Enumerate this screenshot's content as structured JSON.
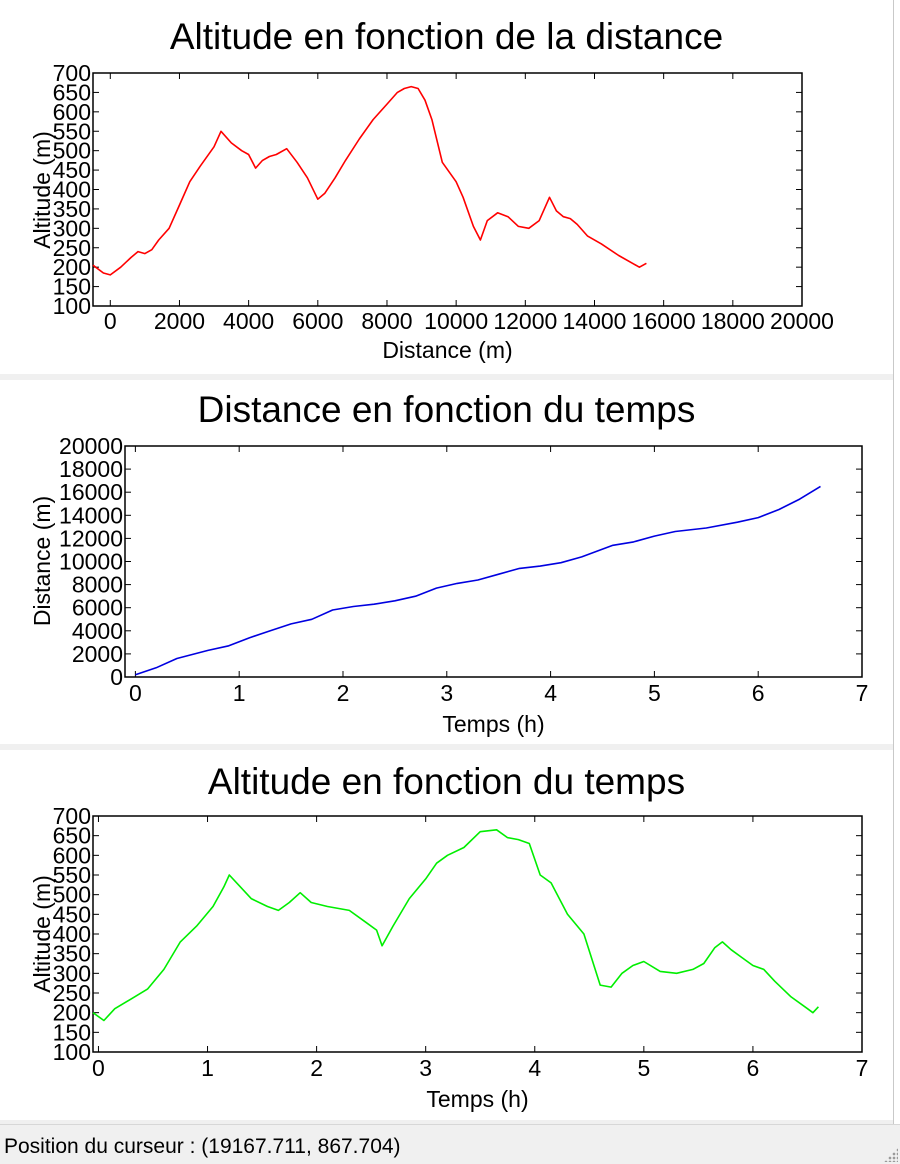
{
  "status": {
    "label": "Position du curseur : ",
    "value": "(19167.711, 867.704)"
  },
  "chart_data": [
    {
      "type": "line",
      "title": "Altitude en fonction de la distance",
      "xlabel": "Distance (m)",
      "ylabel": "Altitude (m)",
      "xlim": [
        -500,
        20000
      ],
      "ylim": [
        100,
        700
      ],
      "xticks": [
        0,
        2000,
        4000,
        6000,
        8000,
        10000,
        12000,
        14000,
        16000,
        18000,
        20000
      ],
      "xtick_labels": [
        "0",
        "2000",
        "4000",
        "6000",
        "8000",
        "10000",
        "12000",
        "14000",
        "16000",
        "18000",
        "20000"
      ],
      "yticks": [
        100,
        150,
        200,
        250,
        300,
        350,
        400,
        450,
        500,
        550,
        600,
        650,
        700
      ],
      "ytick_labels": [
        "100",
        "150",
        "200",
        "250",
        "300",
        "350",
        "400",
        "450",
        "500",
        "550",
        "600",
        "650",
        "700"
      ],
      "grid": false,
      "color": "#ff0000",
      "series": [
        {
          "x": [
            -500,
            -200,
            0,
            300,
            600,
            800,
            1000,
            1200,
            1400,
            1700,
            2000,
            2300,
            2600,
            3000,
            3200,
            3500,
            3800,
            4000,
            4200,
            4400,
            4600,
            4800,
            5100,
            5400,
            5700,
            6000,
            6200,
            6500,
            6800,
            7200,
            7600,
            8000,
            8300,
            8500,
            8700,
            8900,
            9100,
            9300,
            9600,
            10000,
            10200,
            10500,
            10700,
            10900,
            11200,
            11500,
            11800,
            12100,
            12400,
            12700,
            12900,
            13100,
            13300,
            13500,
            13800,
            14200,
            14700,
            15100,
            15300,
            15500
          ],
          "y": [
            205,
            185,
            180,
            200,
            225,
            240,
            235,
            245,
            270,
            300,
            360,
            420,
            460,
            510,
            550,
            520,
            500,
            490,
            455,
            475,
            485,
            490,
            505,
            470,
            430,
            375,
            390,
            430,
            475,
            530,
            580,
            620,
            650,
            660,
            665,
            660,
            630,
            580,
            470,
            420,
            380,
            305,
            270,
            320,
            340,
            330,
            305,
            300,
            320,
            380,
            345,
            330,
            325,
            310,
            280,
            260,
            230,
            210,
            200,
            210
          ]
        }
      ]
    },
    {
      "type": "line",
      "title": "Distance en fonction du temps",
      "xlabel": "Temps (h)",
      "ylabel": "Distance (m)",
      "xlim": [
        -0.1,
        7
      ],
      "ylim": [
        0,
        20000
      ],
      "xticks": [
        0,
        1,
        2,
        3,
        4,
        5,
        6,
        7
      ],
      "xtick_labels": [
        "0",
        "1",
        "2",
        "3",
        "4",
        "5",
        "6",
        "7"
      ],
      "yticks": [
        0,
        2000,
        4000,
        6000,
        8000,
        10000,
        12000,
        14000,
        16000,
        18000,
        20000
      ],
      "ytick_labels": [
        "0",
        "2000",
        "4000",
        "6000",
        "8000",
        "10000",
        "12000",
        "14000",
        "16000",
        "18000",
        "20000"
      ],
      "grid": false,
      "color": "#0000e0",
      "series": [
        {
          "x": [
            0,
            0.2,
            0.4,
            0.7,
            0.9,
            1.1,
            1.3,
            1.5,
            1.7,
            1.9,
            2.1,
            2.3,
            2.5,
            2.7,
            2.9,
            3.1,
            3.3,
            3.5,
            3.7,
            3.9,
            4.1,
            4.3,
            4.6,
            4.8,
            5.0,
            5.2,
            5.5,
            5.8,
            6.0,
            6.2,
            6.4,
            6.6
          ],
          "y": [
            200,
            800,
            1600,
            2300,
            2700,
            3400,
            4000,
            4600,
            5000,
            5800,
            6100,
            6300,
            6600,
            7000,
            7700,
            8100,
            8400,
            8900,
            9400,
            9600,
            9900,
            10400,
            11400,
            11700,
            12200,
            12600,
            12900,
            13400,
            13800,
            14500,
            15400,
            16500
          ]
        }
      ]
    },
    {
      "type": "line",
      "title": "Altitude en fonction du temps",
      "xlabel": "Temps (h)",
      "ylabel": "Altitude (m)",
      "xlim": [
        -0.05,
        7
      ],
      "ylim": [
        100,
        700
      ],
      "xticks": [
        0,
        1,
        2,
        3,
        4,
        5,
        6,
        7
      ],
      "xtick_labels": [
        "0",
        "1",
        "2",
        "3",
        "4",
        "5",
        "6",
        "7"
      ],
      "yticks": [
        100,
        150,
        200,
        250,
        300,
        350,
        400,
        450,
        500,
        550,
        600,
        650,
        700
      ],
      "ytick_labels": [
        "100",
        "150",
        "200",
        "250",
        "300",
        "350",
        "400",
        "450",
        "500",
        "550",
        "600",
        "650",
        "700"
      ],
      "grid": false,
      "color": "#00ee00",
      "series": [
        {
          "x": [
            -0.05,
            0.05,
            0.15,
            0.3,
            0.45,
            0.6,
            0.75,
            0.9,
            1.05,
            1.15,
            1.2,
            1.3,
            1.4,
            1.55,
            1.65,
            1.75,
            1.85,
            1.95,
            2.1,
            2.3,
            2.45,
            2.55,
            2.6,
            2.7,
            2.85,
            3.0,
            3.1,
            3.2,
            3.35,
            3.5,
            3.65,
            3.75,
            3.85,
            3.95,
            4.05,
            4.15,
            4.3,
            4.45,
            4.6,
            4.7,
            4.8,
            4.9,
            5.0,
            5.15,
            5.3,
            5.45,
            5.55,
            5.65,
            5.72,
            5.8,
            5.9,
            6.0,
            6.1,
            6.2,
            6.35,
            6.5,
            6.55,
            6.6
          ],
          "y": [
            200,
            180,
            210,
            235,
            260,
            310,
            380,
            420,
            470,
            520,
            550,
            520,
            490,
            470,
            460,
            480,
            505,
            480,
            470,
            460,
            430,
            410,
            370,
            420,
            490,
            540,
            580,
            600,
            620,
            660,
            665,
            645,
            640,
            630,
            550,
            530,
            450,
            400,
            270,
            265,
            300,
            320,
            330,
            305,
            300,
            310,
            325,
            365,
            380,
            360,
            340,
            320,
            310,
            280,
            240,
            210,
            200,
            215
          ]
        }
      ]
    }
  ]
}
